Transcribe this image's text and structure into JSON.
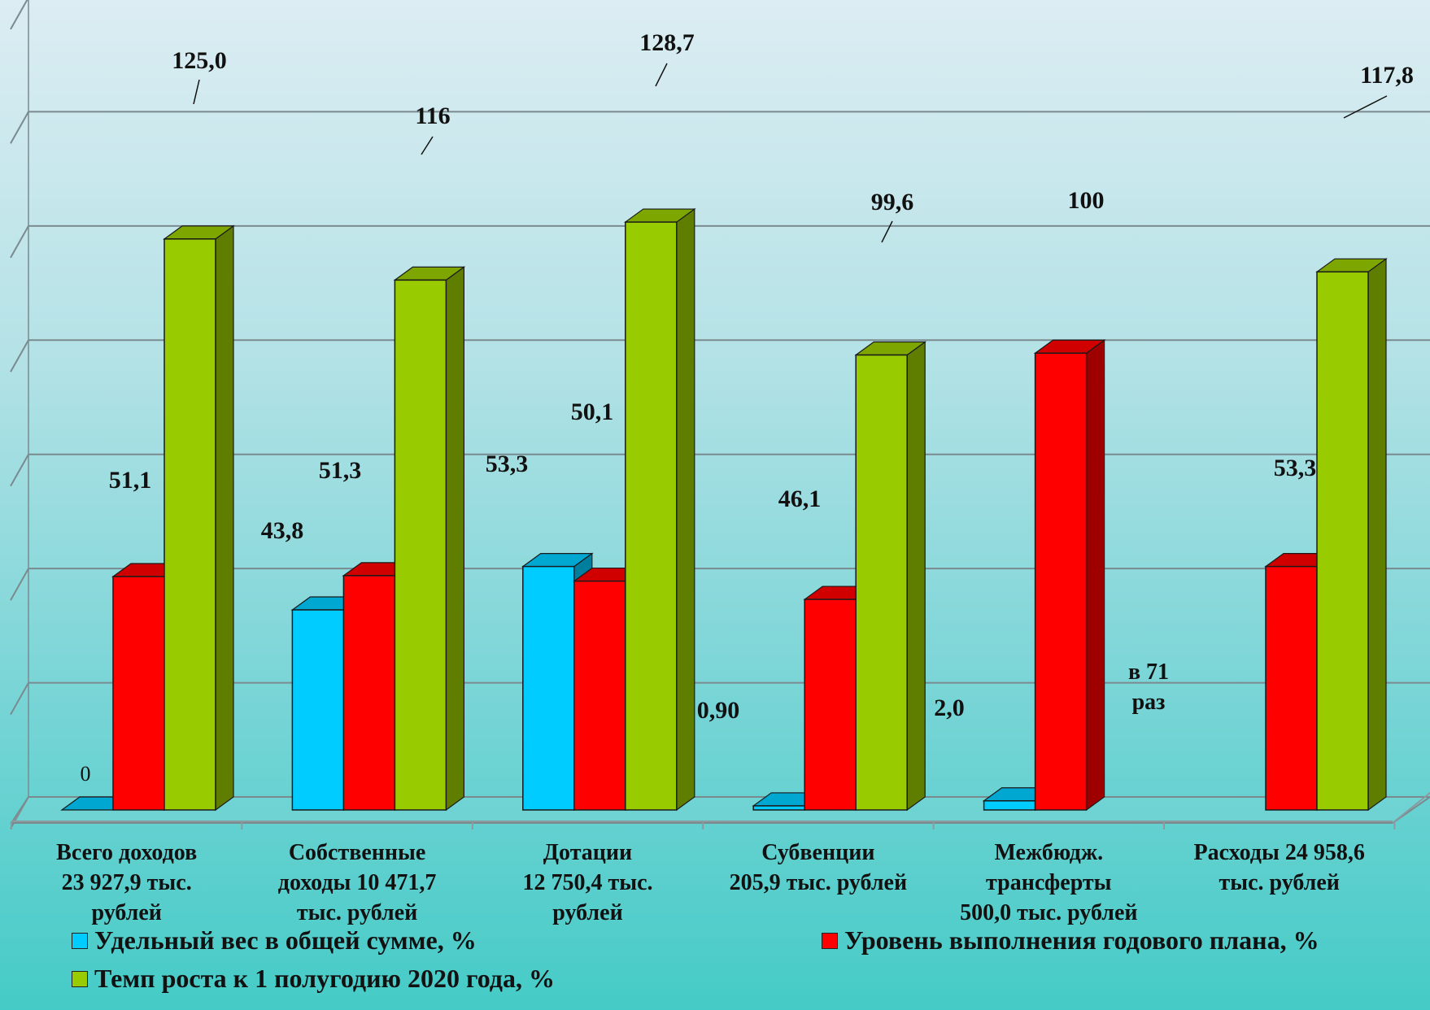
{
  "chart_data": {
    "type": "bar",
    "style": "3d-clustered-column",
    "y_range": [
      0,
      175
    ],
    "grid": true,
    "legend_position": "bottom",
    "categories": [
      "Всего доходов\n23 927,9 тыс.\nрублей",
      "Собственные\nдоходы 10 471,7\nтыс. рублей",
      "Дотации\n12 750,4 тыс.\nрублей",
      "Субвенции\n205,9 тыс. рублей",
      "Межбюдж.\nтрансферты\n500,0 тыс. рублей",
      "Расходы 24 958,6\nтыс. рублей"
    ],
    "series": [
      {
        "name": "Удельный вес в общей сумме, %",
        "color": "#00ccff",
        "values": [
          0,
          43.8,
          53.3,
          0.9,
          2.0,
          0
        ],
        "labels": [
          "0",
          "43,8",
          "53,3",
          "0,90",
          "2,0",
          ""
        ]
      },
      {
        "name": "Уровень выполнения годового  плана, %",
        "color": "#ff0000",
        "values": [
          51.1,
          51.3,
          50.1,
          46.1,
          100,
          53.3
        ],
        "labels": [
          "51,1",
          "51,3",
          "50,1",
          "46,1",
          "100",
          "53,3"
        ]
      },
      {
        "name": "Темп роста к 1 полугодию 2020 года, %",
        "color": "#99cc00",
        "values": [
          125.0,
          116,
          128.7,
          99.6,
          0,
          117.8
        ],
        "labels": [
          "125,0",
          "116",
          "128,7",
          "99,6",
          "",
          "117,8"
        ]
      }
    ],
    "annotation": "в\n71\nраз"
  }
}
